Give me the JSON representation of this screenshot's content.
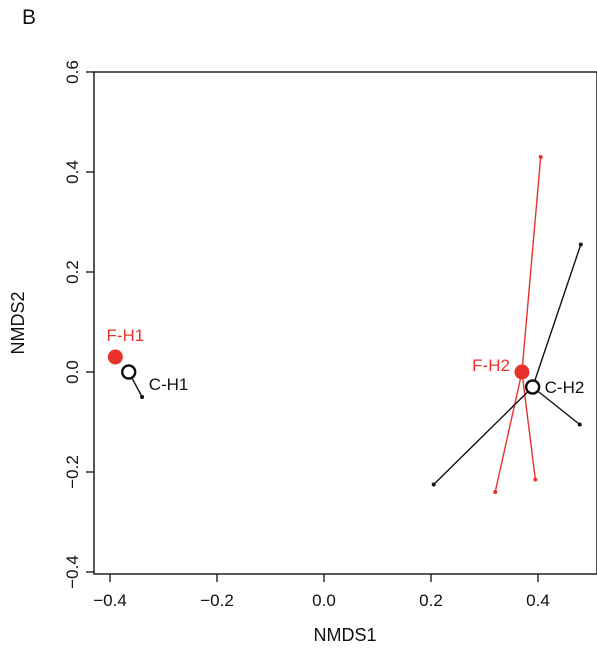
{
  "panel_label": "B",
  "chart_data": {
    "type": "scatter",
    "xlabel": "NMDS1",
    "ylabel": "NMDS2",
    "xlim": [
      -0.43,
      0.5
    ],
    "ylim": [
      -0.4,
      0.6
    ],
    "xticks": [
      -0.4,
      -0.2,
      0.0,
      0.2,
      0.4
    ],
    "xtick_labels": [
      "−0.4",
      "−0.2",
      "0.0",
      "0.2",
      "0.4"
    ],
    "yticks": [
      -0.4,
      -0.2,
      0.0,
      0.2,
      0.4,
      0.6
    ],
    "ytick_labels": [
      "−0.4",
      "−0.2",
      "0.0",
      "0.2",
      "0.4",
      "0.6"
    ],
    "grid": false,
    "colors": {
      "F": "#e8322c",
      "C": "#111111"
    },
    "groups": [
      {
        "label": "F-H1",
        "series": "F",
        "centroid": [
          -0.39,
          0.03
        ],
        "members": []
      },
      {
        "label": "C-H1",
        "series": "C",
        "centroid": [
          -0.365,
          0.0
        ],
        "members": [
          [
            -0.34,
            -0.05
          ]
        ]
      },
      {
        "label": "F-H2",
        "series": "F",
        "centroid": [
          0.37,
          0.0
        ],
        "members": [
          [
            0.405,
            0.43
          ],
          [
            0.395,
            -0.215
          ],
          [
            0.32,
            -0.24
          ]
        ]
      },
      {
        "label": "C-H2",
        "series": "C",
        "centroid": [
          0.39,
          -0.03
        ],
        "members": [
          [
            0.48,
            0.255
          ],
          [
            0.478,
            -0.105
          ],
          [
            0.205,
            -0.225
          ]
        ]
      }
    ]
  }
}
